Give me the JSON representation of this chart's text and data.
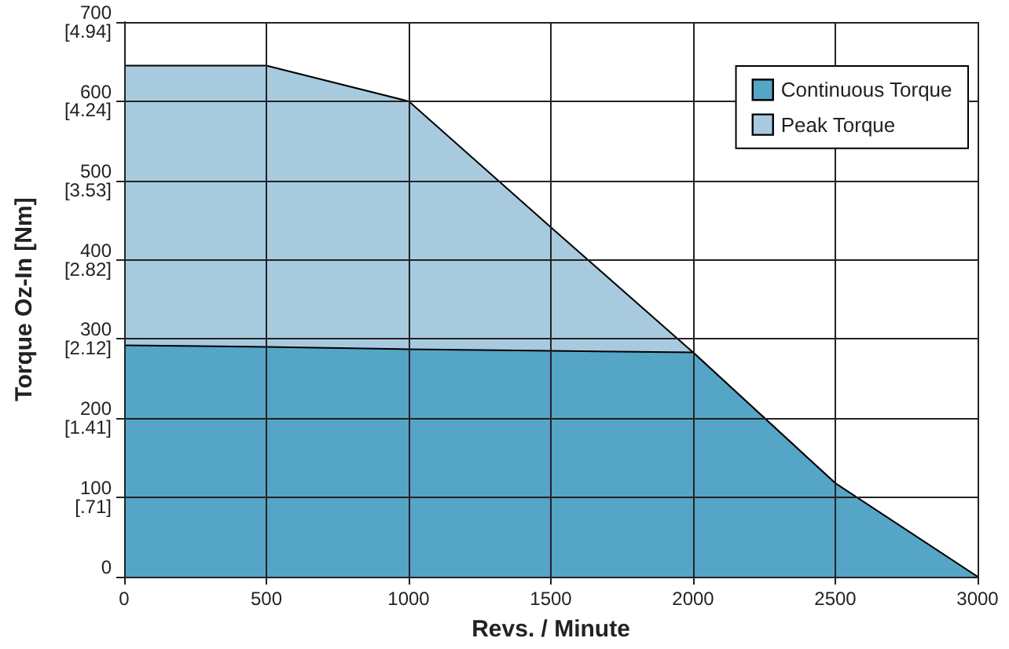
{
  "chart_data": {
    "type": "area",
    "xlabel": "Revs. / Minute",
    "y2label": "Torque Oz-In [Nm]",
    "x": [
      0,
      500,
      1000,
      1500,
      2000,
      2500,
      3000
    ],
    "series": [
      {
        "name": "Continuous Torque",
        "color": "#55a5c6",
        "values": [
          292,
          290,
          287,
          285,
          283,
          118,
          0
        ]
      },
      {
        "name": "Peak Torque",
        "color": "#a8cadf",
        "values": [
          645,
          645,
          600,
          441,
          283,
          118,
          0
        ]
      }
    ],
    "xlim": [
      0,
      3000
    ],
    "xticks": [
      0,
      500,
      1000,
      1500,
      2000,
      2500,
      3000
    ],
    "ylim": [
      0,
      700
    ],
    "yticks": [
      0,
      100,
      200,
      300,
      400,
      500,
      600,
      700
    ],
    "y2lim": [
      0,
      4.94
    ],
    "y2ticks": [
      {
        "value": 0.71,
        "label": "[.71]"
      },
      {
        "value": 1.41,
        "label": "[1.41]"
      },
      {
        "value": 2.12,
        "label": "[2.12]"
      },
      {
        "value": 2.82,
        "label": "[2.82]"
      },
      {
        "value": 3.53,
        "label": "[3.53]"
      },
      {
        "value": 4.24,
        "label": "[4.24]"
      },
      {
        "value": 4.94,
        "label": "[4.94]"
      }
    ],
    "grid": true,
    "legend": "top right"
  }
}
